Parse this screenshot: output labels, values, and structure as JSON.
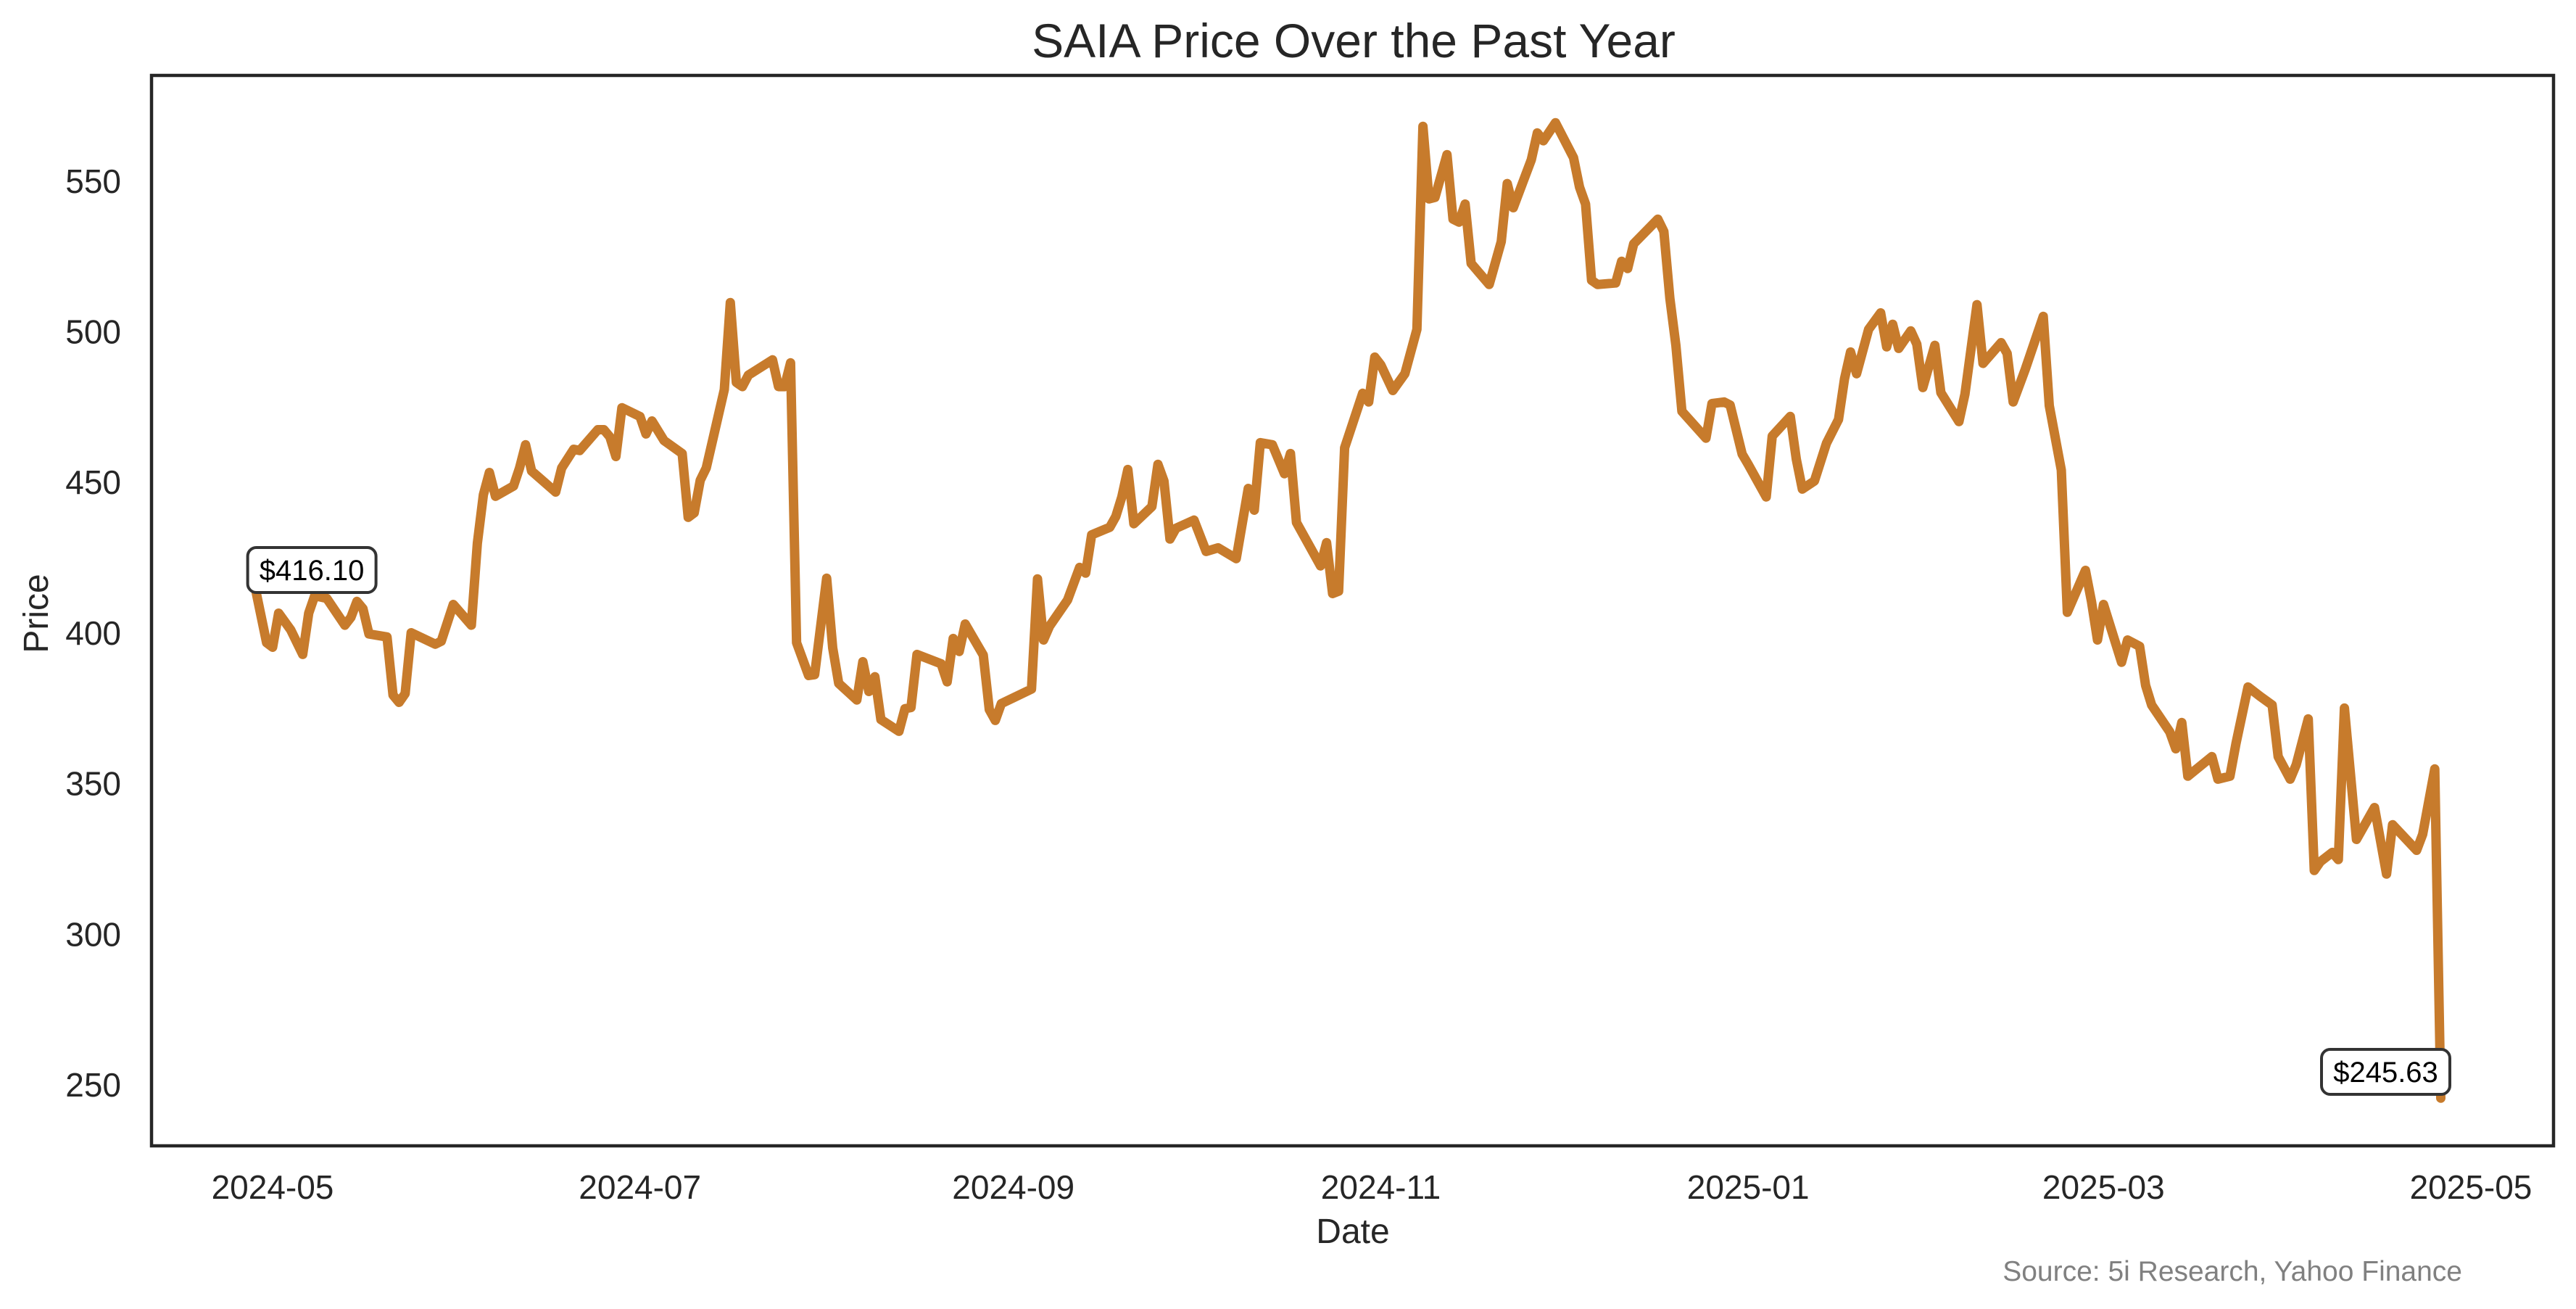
{
  "colors": {
    "line": "#C77B2C",
    "spine": "#262626",
    "text": "#262626",
    "source_text": "#808080",
    "annotation_border": "#333333",
    "background": "#FFFFFF"
  },
  "chart_data": {
    "type": "line",
    "title": "SAIA Price Over the Past Year",
    "xlabel": "Date",
    "ylabel": "Price",
    "ylim": [
      229.8,
      585.1
    ],
    "xlim": [
      "2024-04-22",
      "2025-05-02"
    ],
    "grid": false,
    "legend": "none",
    "x_ticks": [
      "2024-05",
      "2024-07",
      "2024-09",
      "2024-11",
      "2025-01",
      "2025-03",
      "2025-05"
    ],
    "x_tick_dates": [
      "2024-05-01",
      "2024-07-01",
      "2024-09-01",
      "2024-11-01",
      "2025-01-01",
      "2025-03-01",
      "2025-05-01"
    ],
    "y_ticks": [
      250,
      300,
      350,
      400,
      450,
      500,
      550
    ],
    "annotations": [
      {
        "text": "$416.10",
        "date": "2024-04-28",
        "value": 416.1
      },
      {
        "text": "$245.63",
        "date": "2025-04-26",
        "value": 245.63
      }
    ],
    "source": "Source: 5i Research, Yahoo Finance",
    "series": [
      {
        "name": "SAIA",
        "x": [
          "2024-04-28",
          "2024-04-30",
          "2024-05-01",
          "2024-05-02",
          "2024-05-04",
          "2024-05-06",
          "2024-05-07",
          "2024-05-08",
          "2024-05-10",
          "2024-05-13",
          "2024-05-14",
          "2024-05-15",
          "2024-05-16",
          "2024-05-17",
          "2024-05-20",
          "2024-05-21",
          "2024-05-22",
          "2024-05-23",
          "2024-05-24",
          "2024-05-28",
          "2024-05-29",
          "2024-05-31",
          "2024-06-03",
          "2024-06-04",
          "2024-06-05",
          "2024-06-06",
          "2024-06-07",
          "2024-06-10",
          "2024-06-11",
          "2024-06-12",
          "2024-06-13",
          "2024-06-17",
          "2024-06-18",
          "2024-06-20",
          "2024-06-21",
          "2024-06-24",
          "2024-06-25",
          "2024-06-26",
          "2024-06-27",
          "2024-06-28",
          "2024-07-01",
          "2024-07-02",
          "2024-07-03",
          "2024-07-05",
          "2024-07-08",
          "2024-07-09",
          "2024-07-10",
          "2024-07-11",
          "2024-07-12",
          "2024-07-15",
          "2024-07-16",
          "2024-07-17",
          "2024-07-18",
          "2024-07-19",
          "2024-07-23",
          "2024-07-24",
          "2024-07-25",
          "2024-07-26",
          "2024-07-27",
          "2024-07-29",
          "2024-07-30",
          "2024-08-01",
          "2024-08-02",
          "2024-08-03",
          "2024-08-06",
          "2024-08-07",
          "2024-08-08",
          "2024-08-09",
          "2024-08-10",
          "2024-08-13",
          "2024-08-14",
          "2024-08-15",
          "2024-08-16",
          "2024-08-20",
          "2024-08-21",
          "2024-08-22",
          "2024-08-23",
          "2024-08-24",
          "2024-08-27",
          "2024-08-28",
          "2024-08-29",
          "2024-08-30",
          "2024-09-04",
          "2024-09-05",
          "2024-09-06",
          "2024-09-07",
          "2024-09-10",
          "2024-09-12",
          "2024-09-13",
          "2024-09-14",
          "2024-09-17",
          "2024-09-18",
          "2024-09-19",
          "2024-09-20",
          "2024-09-21",
          "2024-09-24",
          "2024-09-25",
          "2024-09-26",
          "2024-09-27",
          "2024-09-28",
          "2024-10-01",
          "2024-10-03",
          "2024-10-05",
          "2024-10-08",
          "2024-10-10",
          "2024-10-11",
          "2024-10-12",
          "2024-10-14",
          "2024-10-16",
          "2024-10-17",
          "2024-10-18",
          "2024-10-22",
          "2024-10-23",
          "2024-10-24",
          "2024-10-25",
          "2024-10-26",
          "2024-10-29",
          "2024-10-30",
          "2024-10-31",
          "2024-11-01",
          "2024-11-03",
          "2024-11-05",
          "2024-11-07",
          "2024-11-08",
          "2024-11-09",
          "2024-11-10",
          "2024-11-12",
          "2024-11-13",
          "2024-11-14",
          "2024-11-15",
          "2024-11-16",
          "2024-11-19",
          "2024-11-21",
          "2024-11-22",
          "2024-11-23",
          "2024-11-26",
          "2024-11-27",
          "2024-11-28",
          "2024-11-30",
          "2024-12-03",
          "2024-12-04",
          "2024-12-05",
          "2024-12-06",
          "2024-12-07",
          "2024-12-10",
          "2024-12-11",
          "2024-12-12",
          "2024-12-13",
          "2024-12-17",
          "2024-12-18",
          "2024-12-19",
          "2024-12-20",
          "2024-12-21",
          "2024-12-25",
          "2024-12-26",
          "2024-12-28",
          "2024-12-29",
          "2024-12-31",
          "2025-01-01",
          "2025-01-04",
          "2025-01-05",
          "2025-01-08",
          "2025-01-09",
          "2025-01-10",
          "2025-01-12",
          "2025-01-14",
          "2025-01-16",
          "2025-01-17",
          "2025-01-18",
          "2025-01-19",
          "2025-01-21",
          "2025-01-23",
          "2025-01-24",
          "2025-01-25",
          "2025-01-26",
          "2025-01-28",
          "2025-01-29",
          "2025-01-30",
          "2025-02-01",
          "2025-02-02",
          "2025-02-05",
          "2025-02-06",
          "2025-02-08",
          "2025-02-09",
          "2025-02-12",
          "2025-02-13",
          "2025-02-14",
          "2025-02-16",
          "2025-02-19",
          "2025-02-20",
          "2025-02-22",
          "2025-02-23",
          "2025-02-26",
          "2025-02-27",
          "2025-02-28",
          "2025-03-01",
          "2025-03-04",
          "2025-03-05",
          "2025-03-07",
          "2025-03-08",
          "2025-03-09",
          "2025-03-12",
          "2025-03-13",
          "2025-03-14",
          "2025-03-15",
          "2025-03-19",
          "2025-03-20",
          "2025-03-22",
          "2025-03-23",
          "2025-03-25",
          "2025-03-27",
          "2025-03-29",
          "2025-03-30",
          "2025-04-01",
          "2025-04-02",
          "2025-04-04",
          "2025-04-05",
          "2025-04-06",
          "2025-04-08",
          "2025-04-09",
          "2025-04-10",
          "2025-04-12",
          "2025-04-15",
          "2025-04-17",
          "2025-04-18",
          "2025-04-22",
          "2025-04-23",
          "2025-04-25",
          "2025-04-26"
        ],
        "values": [
          416.1,
          396.8,
          395.3,
          406.6,
          401.1,
          392.9,
          406.6,
          412.4,
          411.5,
          402.6,
          405.2,
          410.5,
          408.1,
          399.7,
          398.7,
          379.4,
          377.0,
          379.9,
          400.1,
          396.3,
          397.3,
          409.5,
          402.6,
          429.8,
          445.9,
          453.3,
          445.4,
          448.8,
          454.8,
          462.5,
          453.8,
          446.8,
          454.8,
          461.0,
          460.6,
          467.5,
          467.5,
          465.1,
          458.6,
          474.8,
          471.9,
          466.1,
          470.4,
          463.9,
          459.6,
          438.4,
          439.9,
          450.7,
          454.8,
          480.8,
          509.7,
          483.2,
          481.8,
          485.6,
          490.7,
          481.8,
          481.8,
          489.7,
          396.8,
          385.9,
          386.2,
          418.2,
          395.1,
          383.3,
          377.8,
          390.5,
          380.6,
          385.5,
          371.3,
          367.4,
          374.9,
          375.3,
          392.9,
          389.8,
          383.8,
          398.2,
          393.9,
          403.0,
          392.7,
          374.6,
          371.0,
          376.6,
          381.4,
          418.0,
          397.7,
          402.3,
          411.0,
          421.8,
          419.9,
          432.6,
          435.1,
          438.7,
          445.2,
          454.3,
          436.3,
          442.0,
          456.0,
          450.5,
          431.2,
          434.8,
          437.5,
          427.1,
          428.3,
          424.7,
          448.0,
          440.8,
          463.2,
          462.5,
          452.9,
          459.6,
          436.7,
          422.3,
          430.0,
          413.1,
          413.9,
          461.5,
          479.6,
          476.7,
          491.6,
          489.0,
          480.5,
          486.1,
          500.8,
          568.2,
          544.1,
          544.6,
          558.8,
          537.4,
          536.4,
          542.4,
          522.7,
          515.7,
          529.9,
          549.2,
          541.2,
          557.1,
          566.0,
          563.4,
          569.4,
          557.8,
          548.0,
          542.4,
          517.1,
          515.7,
          516.2,
          523.4,
          521.0,
          529.2,
          537.4,
          533.3,
          511.1,
          495.5,
          473.6,
          464.7,
          476.2,
          476.7,
          475.7,
          459.4,
          456.0,
          445.2,
          465.4,
          471.9,
          457.7,
          447.8,
          450.5,
          463.0,
          470.9,
          484.4,
          493.3,
          486.1,
          500.8,
          506.3,
          495.0,
          502.5,
          494.5,
          500.3,
          495.9,
          481.5,
          495.5,
          479.8,
          470.2,
          479.3,
          509.0,
          489.5,
          496.4,
          492.8,
          476.7,
          487.5,
          505.1,
          475.5,
          454.1,
          406.9,
          420.8,
          410.5,
          397.7,
          409.5,
          390.3,
          397.7,
          395.6,
          382.6,
          376.1,
          367.2,
          361.6,
          370.3,
          352.5,
          359.0,
          351.5,
          352.5,
          363.3,
          382.1,
          379.0,
          376.1,
          359.0,
          351.5,
          356.3,
          371.5,
          321.2,
          324.1,
          327.2,
          324.8,
          375.1,
          331.5,
          342.1,
          320.0,
          336.4,
          327.9,
          333.2,
          354.9,
          245.63
        ]
      }
    ]
  }
}
